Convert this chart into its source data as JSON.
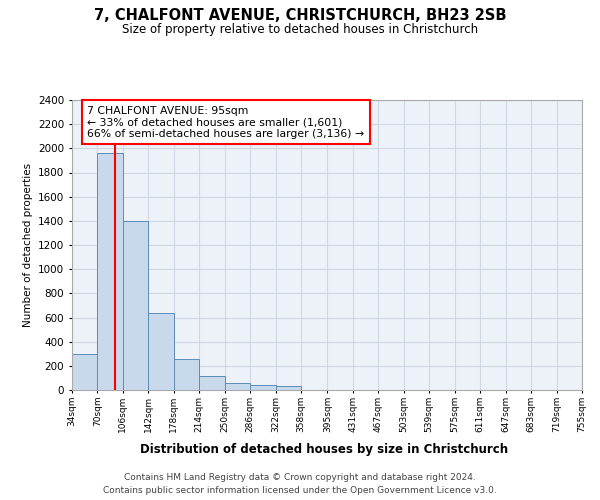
{
  "title": "7, CHALFONT AVENUE, CHRISTCHURCH, BH23 2SB",
  "subtitle": "Size of property relative to detached houses in Christchurch",
  "xlabel": "Distribution of detached houses by size in Christchurch",
  "ylabel": "Number of detached properties",
  "footer_line1": "Contains HM Land Registry data © Crown copyright and database right 2024.",
  "footer_line2": "Contains public sector information licensed under the Open Government Licence v3.0.",
  "annotation_title": "7 CHALFONT AVENUE: 95sqm",
  "annotation_line1": "← 33% of detached houses are smaller (1,601)",
  "annotation_line2": "66% of semi-detached houses are larger (3,136) →",
  "property_size_sqm": 95,
  "bar_edges": [
    34,
    70,
    106,
    142,
    178,
    214,
    250,
    286,
    322,
    358,
    395,
    431,
    467,
    503,
    539,
    575,
    611,
    647,
    683,
    719,
    755
  ],
  "bar_heights": [
    300,
    1960,
    1400,
    640,
    260,
    120,
    55,
    40,
    30,
    0,
    0,
    0,
    0,
    0,
    0,
    0,
    0,
    0,
    0,
    0
  ],
  "bar_color": "#c9d9ec",
  "bar_edge_color": "#5b8db8",
  "red_line_x": 95,
  "ylim": [
    0,
    2400
  ],
  "yticks": [
    0,
    200,
    400,
    600,
    800,
    1000,
    1200,
    1400,
    1600,
    1800,
    2000,
    2200,
    2400
  ],
  "grid_color": "#d0d8e4",
  "background_color": "#ffffff",
  "plot_bg_color": "#edf2f9"
}
